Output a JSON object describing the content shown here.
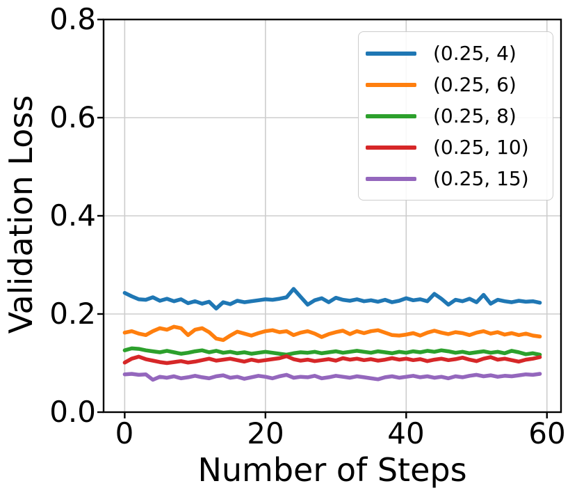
{
  "colors": {
    "background": "#ffffff",
    "spine": "#000000",
    "grid": "#cdcdcd",
    "tick": "#000000",
    "text": "#000000"
  },
  "chart_data": {
    "type": "line",
    "title": "",
    "xlabel": "Number of Steps",
    "ylabel": "Validation Loss",
    "xlim": [
      -3,
      62
    ],
    "ylim": [
      0,
      0.8
    ],
    "x_ticks": [
      0,
      20,
      40,
      60
    ],
    "x_tick_labels": [
      "0",
      "20",
      "40",
      "60"
    ],
    "y_ticks": [
      0.0,
      0.2,
      0.4,
      0.6,
      0.8
    ],
    "y_tick_labels": [
      "0.0",
      "0.2",
      "0.4",
      "0.6",
      "0.8"
    ],
    "grid": true,
    "legend_position": "upper right",
    "x_start": 0,
    "x_step": 1,
    "n_points": 60,
    "series": [
      {
        "name": "(0.25, 4)",
        "color": "#1f77b4",
        "values": [
          0.243,
          0.236,
          0.23,
          0.229,
          0.234,
          0.227,
          0.231,
          0.226,
          0.23,
          0.222,
          0.226,
          0.221,
          0.225,
          0.211,
          0.224,
          0.22,
          0.227,
          0.224,
          0.226,
          0.228,
          0.23,
          0.229,
          0.231,
          0.234,
          0.251,
          0.235,
          0.219,
          0.228,
          0.232,
          0.224,
          0.233,
          0.229,
          0.227,
          0.23,
          0.226,
          0.228,
          0.225,
          0.229,
          0.224,
          0.227,
          0.232,
          0.228,
          0.23,
          0.226,
          0.241,
          0.231,
          0.219,
          0.229,
          0.226,
          0.231,
          0.224,
          0.239,
          0.221,
          0.229,
          0.226,
          0.224,
          0.227,
          0.225,
          0.226,
          0.223
        ]
      },
      {
        "name": "(0.25, 6)",
        "color": "#ff7f0e",
        "values": [
          0.162,
          0.165,
          0.16,
          0.157,
          0.165,
          0.171,
          0.168,
          0.174,
          0.171,
          0.157,
          0.168,
          0.171,
          0.163,
          0.15,
          0.147,
          0.156,
          0.164,
          0.16,
          0.156,
          0.161,
          0.165,
          0.167,
          0.163,
          0.165,
          0.157,
          0.162,
          0.165,
          0.16,
          0.153,
          0.159,
          0.163,
          0.166,
          0.159,
          0.165,
          0.161,
          0.165,
          0.167,
          0.162,
          0.157,
          0.156,
          0.158,
          0.161,
          0.156,
          0.162,
          0.166,
          0.162,
          0.159,
          0.163,
          0.161,
          0.157,
          0.162,
          0.165,
          0.16,
          0.163,
          0.158,
          0.161,
          0.157,
          0.16,
          0.156,
          0.154
        ]
      },
      {
        "name": "(0.25, 8)",
        "color": "#2ca02c",
        "values": [
          0.126,
          0.13,
          0.129,
          0.126,
          0.124,
          0.122,
          0.125,
          0.122,
          0.119,
          0.121,
          0.124,
          0.126,
          0.122,
          0.125,
          0.121,
          0.123,
          0.12,
          0.122,
          0.119,
          0.121,
          0.123,
          0.121,
          0.119,
          0.117,
          0.12,
          0.122,
          0.121,
          0.123,
          0.12,
          0.122,
          0.124,
          0.121,
          0.123,
          0.125,
          0.123,
          0.121,
          0.124,
          0.122,
          0.12,
          0.123,
          0.121,
          0.124,
          0.122,
          0.125,
          0.123,
          0.126,
          0.124,
          0.121,
          0.123,
          0.12,
          0.122,
          0.124,
          0.121,
          0.123,
          0.12,
          0.125,
          0.122,
          0.118,
          0.12,
          0.117
        ]
      },
      {
        "name": "(0.25, 10)",
        "color": "#d62728",
        "values": [
          0.101,
          0.109,
          0.113,
          0.108,
          0.105,
          0.102,
          0.1,
          0.102,
          0.104,
          0.101,
          0.103,
          0.106,
          0.109,
          0.105,
          0.107,
          0.109,
          0.106,
          0.103,
          0.107,
          0.104,
          0.106,
          0.108,
          0.11,
          0.114,
          0.108,
          0.105,
          0.107,
          0.104,
          0.106,
          0.108,
          0.105,
          0.11,
          0.107,
          0.109,
          0.106,
          0.108,
          0.105,
          0.107,
          0.11,
          0.107,
          0.109,
          0.106,
          0.108,
          0.104,
          0.107,
          0.109,
          0.106,
          0.108,
          0.111,
          0.107,
          0.104,
          0.109,
          0.112,
          0.107,
          0.109,
          0.106,
          0.103,
          0.107,
          0.109,
          0.112
        ]
      },
      {
        "name": "(0.25, 15)",
        "color": "#9467bd",
        "values": [
          0.077,
          0.078,
          0.076,
          0.077,
          0.066,
          0.072,
          0.07,
          0.073,
          0.069,
          0.071,
          0.074,
          0.071,
          0.069,
          0.073,
          0.075,
          0.07,
          0.072,
          0.068,
          0.071,
          0.074,
          0.072,
          0.069,
          0.073,
          0.076,
          0.07,
          0.072,
          0.071,
          0.074,
          0.069,
          0.071,
          0.074,
          0.072,
          0.07,
          0.073,
          0.071,
          0.069,
          0.067,
          0.071,
          0.073,
          0.07,
          0.072,
          0.074,
          0.071,
          0.073,
          0.07,
          0.072,
          0.069,
          0.073,
          0.071,
          0.074,
          0.076,
          0.073,
          0.075,
          0.072,
          0.074,
          0.073,
          0.075,
          0.077,
          0.076,
          0.078
        ]
      }
    ]
  }
}
